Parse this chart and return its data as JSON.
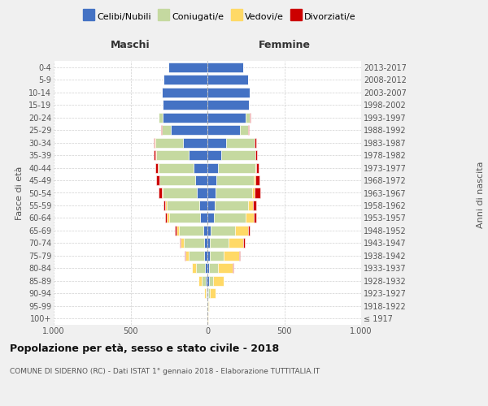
{
  "age_groups": [
    "100+",
    "95-99",
    "90-94",
    "85-89",
    "80-84",
    "75-79",
    "70-74",
    "65-69",
    "60-64",
    "55-59",
    "50-54",
    "45-49",
    "40-44",
    "35-39",
    "30-34",
    "25-29",
    "20-24",
    "15-19",
    "10-14",
    "5-9",
    "0-4"
  ],
  "birth_years": [
    "≤ 1917",
    "1918-1922",
    "1923-1927",
    "1928-1932",
    "1933-1937",
    "1938-1942",
    "1943-1947",
    "1948-1952",
    "1953-1957",
    "1958-1962",
    "1963-1967",
    "1968-1972",
    "1973-1977",
    "1978-1982",
    "1983-1987",
    "1988-1992",
    "1993-1997",
    "1998-2002",
    "2003-2007",
    "2008-2012",
    "2013-2017"
  ],
  "maschi": {
    "celibi": [
      2,
      2,
      4,
      8,
      15,
      20,
      22,
      28,
      50,
      55,
      70,
      80,
      90,
      120,
      160,
      240,
      290,
      290,
      295,
      285,
      255
    ],
    "coniugati": [
      0,
      2,
      8,
      30,
      60,
      100,
      130,
      155,
      200,
      210,
      220,
      230,
      230,
      215,
      180,
      55,
      25,
      2,
      2,
      0,
      0
    ],
    "vedovi": [
      0,
      2,
      8,
      20,
      25,
      22,
      22,
      18,
      12,
      8,
      5,
      3,
      2,
      2,
      2,
      2,
      2,
      0,
      0,
      0,
      0
    ],
    "divorziati": [
      0,
      0,
      0,
      2,
      3,
      5,
      8,
      8,
      12,
      15,
      20,
      18,
      15,
      12,
      8,
      2,
      2,
      0,
      0,
      0,
      0
    ]
  },
  "femmine": {
    "nubili": [
      2,
      2,
      5,
      8,
      12,
      15,
      18,
      22,
      40,
      45,
      55,
      60,
      70,
      90,
      120,
      210,
      250,
      270,
      275,
      265,
      235
    ],
    "coniugate": [
      0,
      3,
      12,
      28,
      55,
      90,
      120,
      160,
      210,
      220,
      235,
      240,
      240,
      220,
      185,
      55,
      25,
      2,
      2,
      0,
      0
    ],
    "vedove": [
      2,
      5,
      35,
      70,
      95,
      100,
      95,
      80,
      50,
      30,
      18,
      10,
      5,
      3,
      3,
      2,
      2,
      0,
      0,
      0,
      0
    ],
    "divorziate": [
      0,
      0,
      2,
      2,
      5,
      8,
      10,
      12,
      18,
      25,
      35,
      28,
      18,
      12,
      8,
      2,
      2,
      0,
      0,
      0,
      0
    ]
  },
  "colors": {
    "celibi": "#4472C4",
    "coniugati": "#C5D9A0",
    "vedovi": "#FFD966",
    "divorziati": "#CC0000"
  },
  "legend_labels": [
    "Celibi/Nubili",
    "Coniugati/e",
    "Vedovi/e",
    "Divorziati/e"
  ],
  "title": "Popolazione per età, sesso e stato civile - 2018",
  "subtitle": "COMUNE DI SIDERNO (RC) - Dati ISTAT 1° gennaio 2018 - Elaborazione TUTTITALIA.IT",
  "xlabel_left": "Maschi",
  "xlabel_right": "Femmine",
  "ylabel_left": "Fasce di età",
  "ylabel_right": "Anni di nascita",
  "xlim": 1000,
  "bg_color": "#f0f0f0",
  "plot_bg": "#ffffff"
}
